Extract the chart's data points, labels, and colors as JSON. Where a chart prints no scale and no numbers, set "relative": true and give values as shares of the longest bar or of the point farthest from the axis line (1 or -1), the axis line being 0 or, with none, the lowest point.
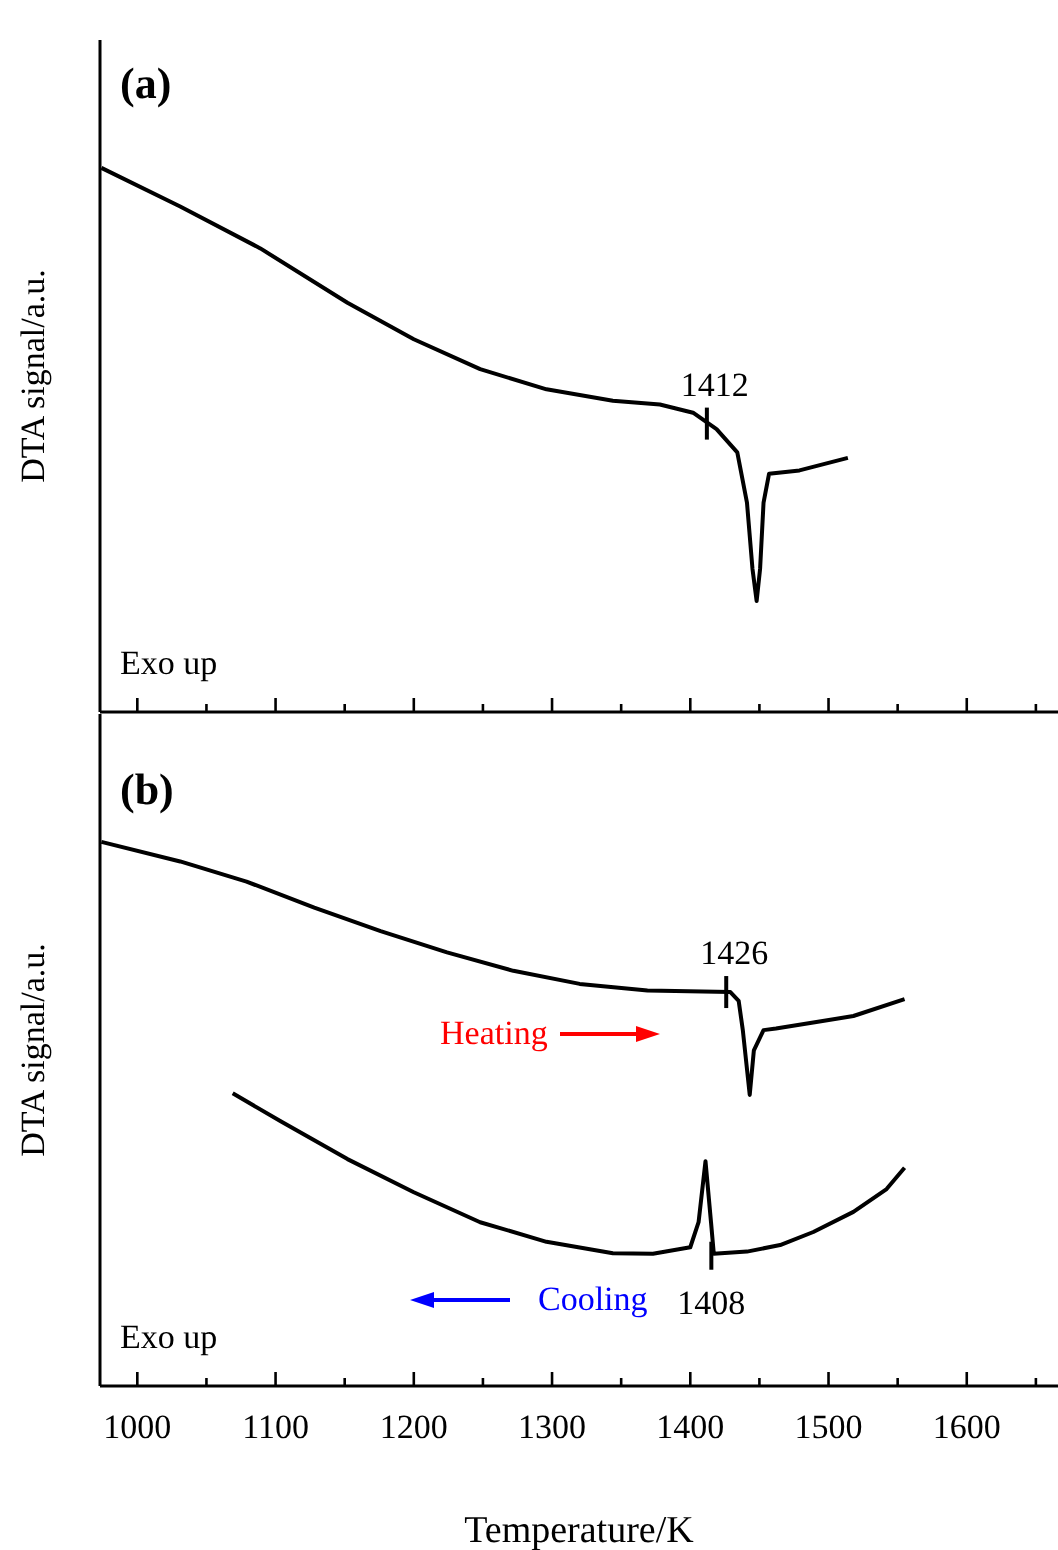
{
  "chart_data": [
    {
      "type": "line",
      "title": "(a)",
      "ylabel": "DTA signal/a.u.",
      "relative": true,
      "xlim": [
        973,
        1666
      ],
      "xticks": [
        1000,
        {
          "value": 1050,
          "label": null
        },
        1100,
        {
          "value": 1150,
          "label": null
        },
        1200,
        {
          "value": 1250,
          "label": null
        },
        1300,
        {
          "value": 1350,
          "label": null
        },
        1400,
        {
          "value": 1450,
          "label": null
        },
        1500,
        {
          "value": 1550,
          "label": null
        },
        1600,
        {
          "value": 1650,
          "label": null
        }
      ],
      "tick_labels": false,
      "marker": "none",
      "line_style": "solid",
      "grid": false,
      "legend": false,
      "series": [
        {
          "color": "#000000",
          "x": [
            974,
            1031,
            1089,
            1152,
            1200,
            1248,
            1296,
            1344,
            1378,
            1402,
            1419,
            1434,
            1441,
            1445,
            1448,
            1450.5,
            1453,
            1457,
            1479,
            1514
          ],
          "values": [
            1,
            0.929,
            0.852,
            0.752,
            0.685,
            0.63,
            0.593,
            0.572,
            0.565,
            0.55,
            0.52,
            0.477,
            0.385,
            0.263,
            0.204,
            0.263,
            0.385,
            0.438,
            0.444,
            0.467
          ]
        }
      ],
      "annotations": [
        "Exo up",
        {
          "text": "1412",
          "x": 1412,
          "y": 0.53
        }
      ]
    },
    {
      "type": "line",
      "title": "(b)",
      "xlabel": "Temperature/K",
      "ylabel": "DTA signal/a.u.",
      "relative": true,
      "xlim": [
        973,
        1666
      ],
      "xticks": [
        1000,
        {
          "value": 1050,
          "label": null
        },
        1100,
        {
          "value": 1150,
          "label": null
        },
        1200,
        {
          "value": 1250,
          "label": null
        },
        1300,
        {
          "value": 1350,
          "label": null
        },
        1400,
        {
          "value": 1450,
          "label": null
        },
        1500,
        {
          "value": 1550,
          "label": null
        },
        1600,
        {
          "value": 1650,
          "label": null
        }
      ],
      "tick_labels": "x",
      "marker": "none",
      "line_style": "solid",
      "grid": false,
      "legend": false,
      "series": [
        {
          "color": "#000000",
          "x": [
            974,
            1031,
            1079,
            1128,
            1176,
            1224,
            1272,
            1320,
            1369,
            1429,
            1435,
            1438,
            1443,
            1446,
            1453,
            1462,
            1489,
            1518,
            1555
          ],
          "values": [
            1,
            0.964,
            0.927,
            0.879,
            0.836,
            0.797,
            0.763,
            0.739,
            0.727,
            0.724,
            0.708,
            0.654,
            0.535,
            0.617,
            0.654,
            0.657,
            0.668,
            0.68,
            0.711
          ]
        },
        {
          "color": "#000000",
          "x": [
            1069,
            1104,
            1152,
            1200,
            1248,
            1296,
            1344,
            1373,
            1400,
            1406,
            1411,
            1415,
            1417,
            1441,
            1465,
            1489,
            1518,
            1542,
            1555
          ],
          "values": [
            0.538,
            0.486,
            0.417,
            0.356,
            0.301,
            0.265,
            0.244,
            0.243,
            0.255,
            0.301,
            0.413,
            0.301,
            0.243,
            0.247,
            0.259,
            0.283,
            0.32,
            0.362,
            0.401
          ]
        }
      ],
      "annotations": [
        "Exo up",
        "Heating",
        "Cooling",
        {
          "text": "1426",
          "x": 1426,
          "y": 0.724
        },
        {
          "text": "1408",
          "x": 1408,
          "y": 0.346
        }
      ]
    }
  ]
}
